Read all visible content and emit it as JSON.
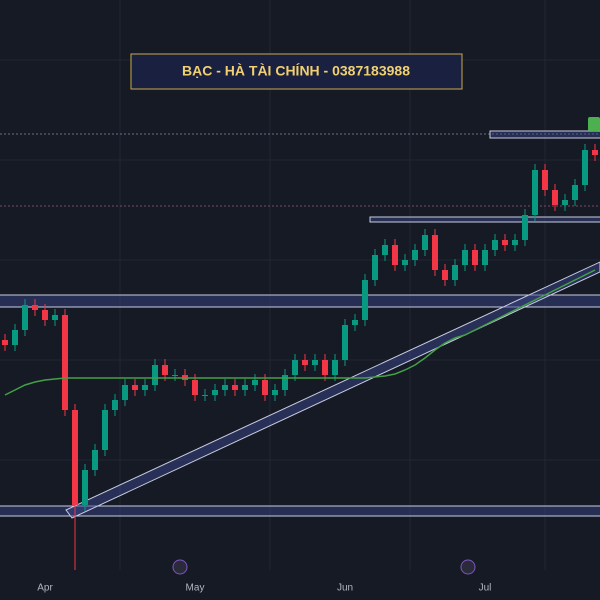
{
  "chart_data": {
    "type": "candlestick",
    "title": "BẠC - HÀ TÀI CHÍNH - 0387183988",
    "categories": [
      null,
      null,
      null,
      null,
      "Apr",
      null,
      null,
      null,
      null,
      null,
      null,
      null,
      null,
      null,
      null,
      null,
      null,
      null,
      null,
      "May",
      null,
      null,
      null,
      null,
      null,
      null,
      null,
      null,
      null,
      null,
      null,
      null,
      null,
      null,
      "Jun",
      null,
      null,
      null,
      null,
      null,
      null,
      null,
      null,
      null,
      null,
      null,
      null,
      null,
      "Jul",
      null,
      null,
      null,
      null,
      null,
      null,
      null,
      null,
      null,
      null,
      null
    ],
    "open": [
      260,
      255,
      270,
      295,
      290,
      280,
      285,
      190,
      95,
      130,
      150,
      190,
      200,
      215,
      210,
      215,
      235,
      225,
      225,
      220,
      205,
      205,
      210,
      215,
      210,
      215,
      220,
      205,
      210,
      225,
      240,
      235,
      240,
      225,
      240,
      275,
      280,
      320,
      345,
      355,
      335,
      340,
      350,
      365,
      330,
      320,
      335,
      350,
      335,
      350,
      360,
      355,
      360,
      385,
      430,
      410,
      395,
      400,
      415,
      450
    ],
    "high": [
      266,
      276,
      301,
      301,
      296,
      291,
      291,
      196,
      136,
      156,
      196,
      206,
      221,
      221,
      221,
      241,
      241,
      231,
      231,
      226,
      211,
      216,
      221,
      221,
      221,
      226,
      226,
      216,
      231,
      246,
      246,
      246,
      246,
      246,
      281,
      286,
      326,
      351,
      361,
      361,
      346,
      356,
      371,
      371,
      336,
      341,
      356,
      356,
      356,
      366,
      366,
      366,
      391,
      436,
      436,
      416,
      406,
      421,
      456,
      456
    ],
    "low": [
      249,
      249,
      264,
      284,
      274,
      274,
      184,
      30,
      89,
      124,
      144,
      184,
      194,
      204,
      204,
      209,
      219,
      219,
      214,
      199,
      199,
      199,
      204,
      204,
      204,
      209,
      199,
      199,
      204,
      219,
      229,
      229,
      219,
      219,
      234,
      269,
      274,
      314,
      339,
      329,
      329,
      334,
      344,
      324,
      314,
      314,
      329,
      329,
      329,
      344,
      349,
      349,
      354,
      379,
      404,
      389,
      389,
      394,
      409,
      439
    ],
    "close": [
      255,
      270,
      295,
      290,
      280,
      285,
      190,
      95,
      130,
      150,
      190,
      200,
      215,
      210,
      215,
      235,
      225,
      225,
      220,
      205,
      205,
      210,
      215,
      210,
      215,
      220,
      205,
      210,
      225,
      240,
      235,
      240,
      225,
      240,
      275,
      280,
      320,
      345,
      355,
      335,
      340,
      350,
      365,
      330,
      320,
      335,
      350,
      335,
      350,
      360,
      355,
      360,
      385,
      430,
      410,
      395,
      400,
      415,
      450,
      445
    ],
    "ma": [
      205,
      210,
      215,
      218,
      220,
      221,
      222,
      222,
      222,
      222,
      222,
      222,
      222,
      222,
      222,
      222,
      222,
      222,
      222,
      222,
      222,
      222,
      222,
      222,
      222,
      222,
      222,
      222,
      222,
      222,
      222,
      222,
      222,
      222,
      222,
      222,
      222,
      223,
      224,
      226,
      230,
      235,
      242,
      250,
      257,
      262,
      265,
      270,
      275,
      280,
      285,
      290,
      295,
      300,
      305,
      310,
      315,
      320,
      325,
      330
    ],
    "up_color": "#089981",
    "down_color": "#f23645",
    "ma_color": "#43a047",
    "ylim": [
      0,
      600
    ]
  }
}
